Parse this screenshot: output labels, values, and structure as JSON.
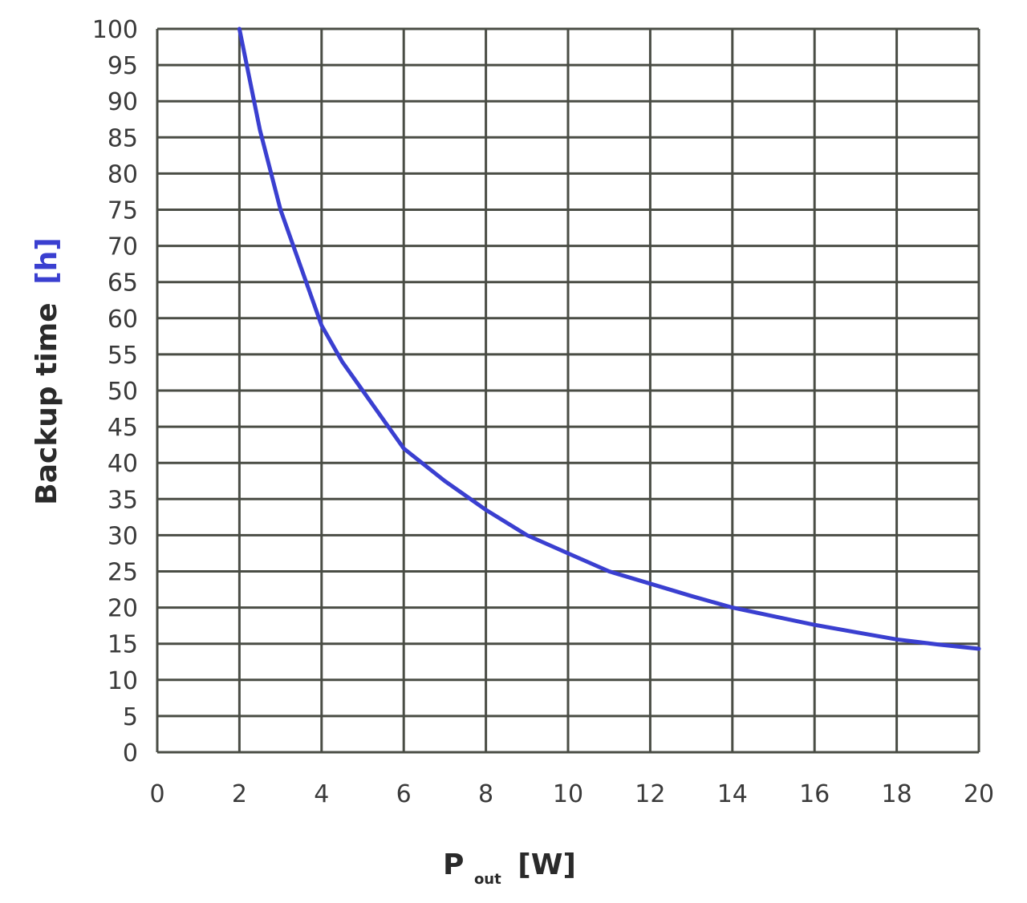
{
  "chart_data": {
    "type": "line",
    "title": "",
    "xlabel_main": "P",
    "xlabel_sub": "out",
    "xlabel_unit": "[W]",
    "ylabel_main": "Backup time",
    "ylabel_unit": "[h]",
    "xlim": [
      0,
      20
    ],
    "ylim": [
      0,
      100
    ],
    "xticks": [
      0,
      2,
      4,
      6,
      8,
      10,
      12,
      14,
      16,
      18,
      20
    ],
    "yticks": [
      0,
      5,
      10,
      15,
      20,
      25,
      30,
      35,
      40,
      45,
      50,
      55,
      60,
      65,
      70,
      75,
      80,
      85,
      90,
      95,
      100
    ],
    "grid": true,
    "series": [
      {
        "color": "#3a3fd0",
        "x": [
          2,
          2.5,
          3,
          3.5,
          4,
          4.5,
          5,
          6,
          7,
          8,
          9,
          10,
          11,
          12,
          13,
          14,
          15,
          16,
          17,
          18,
          19,
          20
        ],
        "y": [
          100,
          86,
          75,
          67,
          59,
          54,
          50,
          42,
          37.5,
          33.5,
          30,
          27.5,
          25,
          23.3,
          21.6,
          20,
          18.8,
          17.6,
          16.6,
          15.6,
          14.9,
          14.3
        ]
      }
    ]
  }
}
